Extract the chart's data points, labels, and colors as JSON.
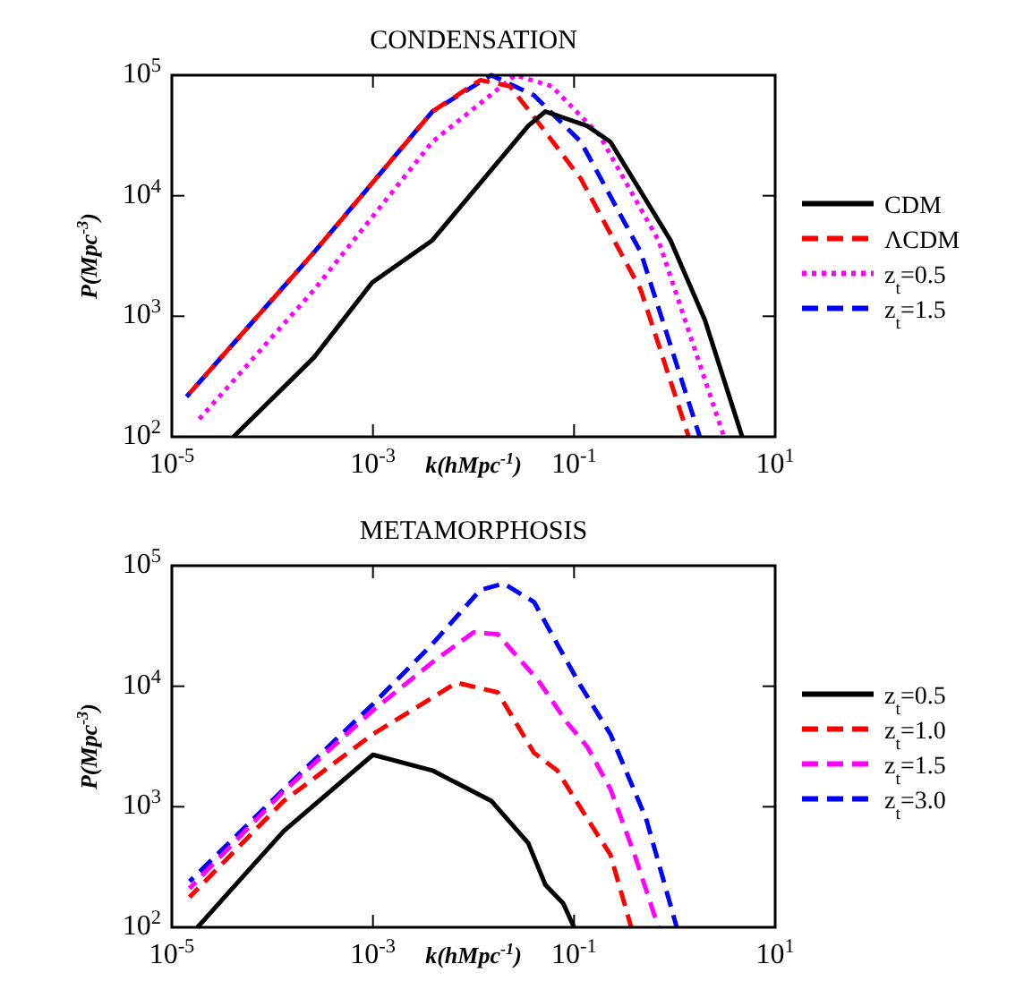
{
  "chart_data": [
    {
      "type": "line",
      "title": "CONDENSATION",
      "xlabel": "k(hMpc$^{-1}$)",
      "ylabel": "P(Mpc$^{-3}$)",
      "log": "xy",
      "legend": "right",
      "xlim": [
        1e-05,
        10
      ],
      "ylim": [
        100,
        100000
      ],
      "xticks": [
        {
          "value": 1e-05,
          "label": "10$^{-5}$"
        },
        {
          "value": 0.001,
          "label": "10$^{-3}$"
        },
        {
          "value": 0.1,
          "label": "10$^{-1}$"
        },
        {
          "value": 10,
          "label": "10$^{1}$"
        }
      ],
      "yticks": [
        {
          "value": 100,
          "label": "10$^{2}$"
        },
        {
          "value": 1000,
          "label": "10$^{3}$"
        },
        {
          "value": 10000,
          "label": "10$^{4}$"
        },
        {
          "value": 100000,
          "label": "10$^{5}$"
        }
      ],
      "series": [
        {
          "name": "CDM",
          "color": "#000000",
          "line_style": "solid",
          "x": [
            4.1e-05,
            0.00026,
            0.00098,
            0.0039,
            0.035,
            0.052,
            0.135,
            0.23,
            0.91,
            2.0,
            4.7
          ],
          "values": [
            100,
            457,
            1900,
            4270,
            38000,
            50000,
            38000,
            28000,
            4270,
            930,
            100
          ]
        },
        {
          "name": "ΛCDM",
          "color": "#ff0000",
          "line_style": "dashed",
          "x": [
            1.5e-05,
            0.00026,
            0.0039,
            0.0117,
            0.023,
            0.04,
            0.117,
            0.46,
            1.38
          ],
          "values": [
            230,
            3400,
            50000,
            91000,
            81000,
            45000,
            13800,
            1660,
            100
          ]
        },
        {
          "name": "z$_{t}$=0.5",
          "color": "#ff00ff",
          "line_style": "dotted",
          "x": [
            1.8e-05,
            0.00026,
            0.0039,
            0.026,
            0.06,
            0.178,
            0.69,
            3.1
          ],
          "values": [
            135,
            1660,
            28000,
            100000,
            81000,
            32000,
            4270,
            100
          ]
        },
        {
          "name": "z$_{t}$=1.5",
          "color": "#0000ff",
          "line_style": "dashed",
          "x": [
            1.4e-05,
            0.00026,
            0.0039,
            0.015,
            0.04,
            0.117,
            0.46,
            1.78
          ],
          "values": [
            215,
            3400,
            50000,
            100000,
            68000,
            28000,
            3400,
            100
          ]
        }
      ]
    },
    {
      "type": "line",
      "title": "METAMORPHOSIS",
      "xlabel": "k(hMpc$^{-1}$)",
      "ylabel": "P(Mpc$^{-3}$)",
      "log": "xy",
      "legend": "right",
      "xlim": [
        1e-05,
        10
      ],
      "ylim": [
        100,
        100000
      ],
      "xticks": [
        {
          "value": 1e-05,
          "label": "10$^{-5}$"
        },
        {
          "value": 0.001,
          "label": "10$^{-3}$"
        },
        {
          "value": 0.1,
          "label": "10$^{-1}$"
        },
        {
          "value": 10,
          "label": "10$^{1}$"
        }
      ],
      "yticks": [
        {
          "value": 100,
          "label": "10$^{2}$"
        },
        {
          "value": 1000,
          "label": "10$^{3}$"
        },
        {
          "value": 10000,
          "label": "10$^{4}$"
        },
        {
          "value": 100000,
          "label": "10$^{5}$"
        }
      ],
      "series": [
        {
          "name": "z$_{t}$=0.5",
          "color": "#000000",
          "line_style": "solid",
          "x": [
            1.8e-05,
            0.00013,
            0.001,
            0.0039,
            0.015,
            0.035,
            0.052,
            0.078,
            0.1
          ],
          "values": [
            100,
            630,
            2700,
            2000,
            1120,
            500,
            224,
            158,
            100
          ]
        },
        {
          "name": "z$_{t}$=1.0",
          "color": "#ff0000",
          "line_style": "dashed",
          "x": [
            1.5e-05,
            0.00013,
            0.001,
            0.0068,
            0.0174,
            0.04,
            0.068,
            0.135,
            0.23,
            0.37
          ],
          "values": [
            178,
            1120,
            4000,
            10700,
            8900,
            2800,
            2000,
            800,
            400,
            100
          ]
        },
        {
          "name": "z$_{t}$=1.5",
          "color": "#ff00ff",
          "line_style": "dashed",
          "x": [
            1.5e-05,
            0.00013,
            0.001,
            0.0039,
            0.01,
            0.0174,
            0.044,
            0.085,
            0.135,
            0.23,
            0.4,
            0.69
          ],
          "values": [
            210,
            1350,
            6300,
            15800,
            28000,
            27000,
            11200,
            5000,
            3160,
            1400,
            400,
            100
          ]
        },
        {
          "name": "z$_{t}$=3.0",
          "color": "#0000ff",
          "line_style": "dashed",
          "x": [
            1.5e-05,
            0.00013,
            0.001,
            0.0039,
            0.0117,
            0.02,
            0.04,
            0.068,
            0.117,
            0.23,
            0.52,
            1.05
          ],
          "values": [
            240,
            1400,
            7100,
            22400,
            63000,
            71000,
            50000,
            22400,
            10000,
            4000,
            800,
            100
          ]
        }
      ]
    }
  ]
}
